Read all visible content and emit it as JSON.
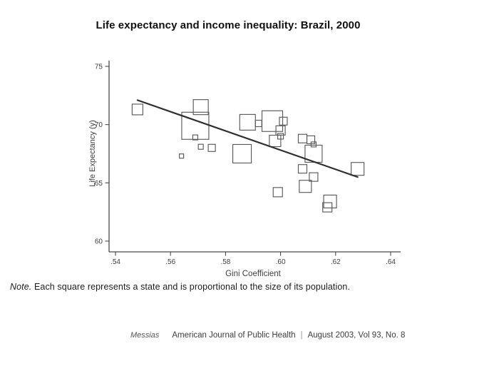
{
  "slide": {
    "title": "Life expectancy and income inequality: Brazil, 2000",
    "note_label": "Note.",
    "note_body": " Each square represents a state and is proportional to the size of its population.",
    "footer": {
      "author": "Messias",
      "journal": "American Journal of Public Health",
      "separator": "|",
      "issue": "August 2003, Vol 93, No. 8"
    }
  },
  "chart_data": {
    "type": "scatter",
    "title": "Life expectancy and income inequality: Brazil, 2000",
    "xlabel": "Gini Coefficient",
    "ylabel": "Life Expectancy (y)",
    "xlim": [
      0.535,
      0.645
    ],
    "ylim": [
      59.5,
      75.8
    ],
    "grid": false,
    "legend": false,
    "marker": "open-square-proportional-to-state-population",
    "x_ticks": {
      "values": [
        0.54,
        0.56,
        0.58,
        0.6,
        0.62,
        0.64
      ],
      "labels": [
        ".54",
        ".56",
        ".58",
        ".60",
        ".62",
        ".64"
      ]
    },
    "y_ticks": {
      "values": [
        60,
        65,
        70,
        75
      ],
      "labels": [
        "60",
        "65",
        "70",
        "75"
      ]
    },
    "points": [
      {
        "x": 0.548,
        "y": 71.3,
        "size": 15
      },
      {
        "x": 0.571,
        "y": 71.5,
        "size": 21
      },
      {
        "x": 0.569,
        "y": 69.9,
        "size": 38
      },
      {
        "x": 0.569,
        "y": 68.9,
        "size": 7
      },
      {
        "x": 0.571,
        "y": 68.1,
        "size": 7
      },
      {
        "x": 0.575,
        "y": 68.0,
        "size": 10
      },
      {
        "x": 0.564,
        "y": 67.3,
        "size": 6
      },
      {
        "x": 0.586,
        "y": 67.5,
        "size": 26
      },
      {
        "x": 0.588,
        "y": 70.2,
        "size": 22
      },
      {
        "x": 0.592,
        "y": 70.1,
        "size": 9
      },
      {
        "x": 0.597,
        "y": 70.3,
        "size": 29
      },
      {
        "x": 0.601,
        "y": 70.3,
        "size": 11
      },
      {
        "x": 0.6,
        "y": 69.5,
        "size": 13
      },
      {
        "x": 0.6,
        "y": 69.0,
        "size": 8
      },
      {
        "x": 0.598,
        "y": 68.6,
        "size": 16
      },
      {
        "x": 0.608,
        "y": 68.8,
        "size": 12
      },
      {
        "x": 0.611,
        "y": 68.7,
        "size": 11
      },
      {
        "x": 0.612,
        "y": 68.3,
        "size": 7
      },
      {
        "x": 0.612,
        "y": 67.5,
        "size": 24
      },
      {
        "x": 0.608,
        "y": 66.2,
        "size": 12
      },
      {
        "x": 0.612,
        "y": 65.5,
        "size": 12
      },
      {
        "x": 0.609,
        "y": 64.7,
        "size": 17
      },
      {
        "x": 0.599,
        "y": 64.2,
        "size": 13
      },
      {
        "x": 0.618,
        "y": 63.4,
        "size": 18
      },
      {
        "x": 0.617,
        "y": 62.9,
        "size": 13
      },
      {
        "x": 0.628,
        "y": 66.2,
        "size": 18
      }
    ],
    "trend_line": {
      "x1": 0.548,
      "y1": 72.1,
      "x2": 0.628,
      "y2": 65.5
    },
    "colors": {
      "axis": "#4a4a4a",
      "square_stroke": "#5a5a5a",
      "trend": "#2e2e2e",
      "tick_text": "#3f3f3f"
    }
  }
}
